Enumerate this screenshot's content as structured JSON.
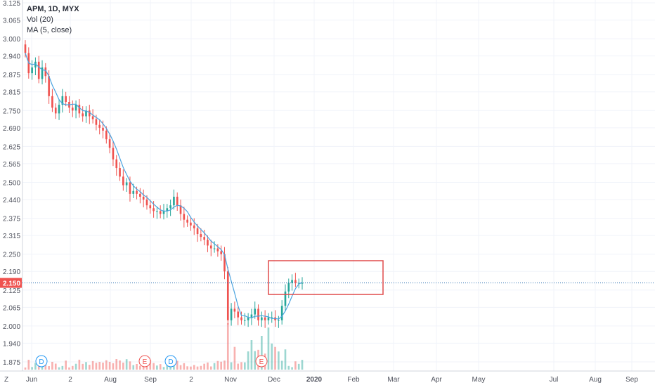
{
  "legend": {
    "symbol": "APM, 1D, MYX",
    "volume": "Vol (20)",
    "ma": "MA (5, close)"
  },
  "price_scale": {
    "ticks": [
      "3.125",
      "3.065",
      "3.000",
      "2.940",
      "2.875",
      "2.815",
      "2.750",
      "2.690",
      "2.625",
      "2.565",
      "2.500",
      "2.440",
      "2.375",
      "2.315",
      "2.250",
      "2.190",
      "2.125",
      "2.065",
      "2.000",
      "1.940",
      "1.875"
    ],
    "current_price": "2.150"
  },
  "time_scale": {
    "labels": [
      "Jun",
      "2",
      "Aug",
      "Sep",
      "2",
      "Nov",
      "Dec",
      "2020",
      "Feb",
      "Mar",
      "Apr",
      "May",
      "Jul",
      "Aug",
      "Sep"
    ],
    "corner_label": "Z"
  },
  "markers": [
    {
      "label": "D",
      "kind": "dividend"
    },
    {
      "label": "E",
      "kind": "earnings"
    },
    {
      "label": "D",
      "kind": "dividend"
    },
    {
      "label": "E",
      "kind": "earnings"
    }
  ],
  "colors": {
    "up": "#26a69a",
    "down": "#ef5350",
    "ma": "#4aa3df",
    "price_line": "#2a6fb0",
    "box": "#e04b4b",
    "dividend": "#2196f3",
    "earnings": "#ef5350"
  },
  "chart_data": {
    "type": "candlestick",
    "price_range": [
      1.86,
      3.13
    ],
    "series": [
      {
        "name": "Price",
        "close": [
          2.95,
          2.88,
          2.9,
          2.92,
          2.86,
          2.9,
          2.87,
          2.8,
          2.76,
          2.74,
          2.77,
          2.8,
          2.78,
          2.76,
          2.75,
          2.77,
          2.74,
          2.73,
          2.75,
          2.73,
          2.72,
          2.7,
          2.69,
          2.68,
          2.65,
          2.62,
          2.58,
          2.55,
          2.52,
          2.49,
          2.5,
          2.46,
          2.47,
          2.46,
          2.45,
          2.44,
          2.42,
          2.41,
          2.4,
          2.4,
          2.39,
          2.4,
          2.41,
          2.42,
          2.45,
          2.42,
          2.39,
          2.37,
          2.36,
          2.35,
          2.34,
          2.32,
          2.31,
          2.3,
          2.28,
          2.27,
          2.27,
          2.26,
          2.25,
          2.19,
          2.02,
          2.06,
          2.05,
          2.03,
          2.02,
          2.02,
          2.03,
          2.04,
          2.06,
          2.02,
          2.03,
          2.02,
          2.03,
          2.03,
          2.02,
          2.02,
          2.07,
          2.12,
          2.15,
          2.16,
          2.15,
          2.15,
          2.15
        ]
      },
      {
        "name": "MA (5, close)"
      },
      {
        "name": "Vol (20)"
      }
    ]
  }
}
